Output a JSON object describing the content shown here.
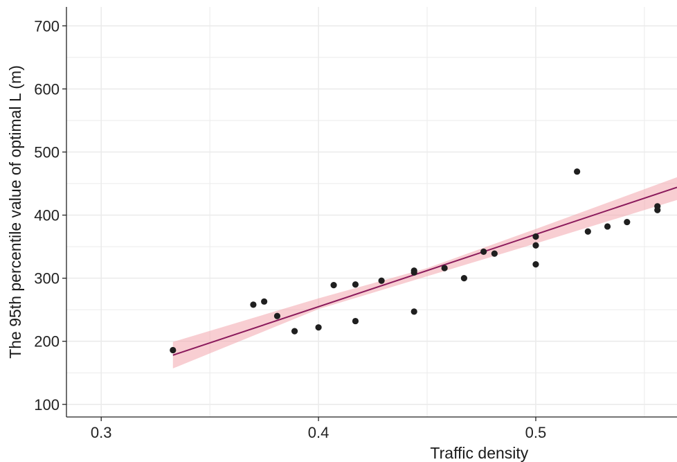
{
  "chart_data": {
    "type": "scatter",
    "title": "",
    "xlabel": "Traffic density",
    "ylabel": "The 95th percentile value of optimal L (m)",
    "xlim": [
      0.284,
      0.565
    ],
    "ylim": [
      80,
      730
    ],
    "x_ticks": [
      0.3,
      0.4,
      0.5
    ],
    "x_tick_labels": [
      "0.3",
      "0.4",
      "0.5"
    ],
    "y_ticks": [
      100,
      200,
      300,
      400,
      500,
      600,
      700
    ],
    "y_tick_labels": [
      "100",
      "200",
      "300",
      "400",
      "500",
      "600",
      "700"
    ],
    "grid": true,
    "legend": "none",
    "points": [
      {
        "x": 0.333,
        "y": 186
      },
      {
        "x": 0.37,
        "y": 258
      },
      {
        "x": 0.375,
        "y": 263
      },
      {
        "x": 0.381,
        "y": 240
      },
      {
        "x": 0.389,
        "y": 216
      },
      {
        "x": 0.4,
        "y": 222
      },
      {
        "x": 0.407,
        "y": 289
      },
      {
        "x": 0.417,
        "y": 290
      },
      {
        "x": 0.417,
        "y": 232
      },
      {
        "x": 0.429,
        "y": 296
      },
      {
        "x": 0.444,
        "y": 312
      },
      {
        "x": 0.444,
        "y": 309
      },
      {
        "x": 0.444,
        "y": 247
      },
      {
        "x": 0.458,
        "y": 316
      },
      {
        "x": 0.467,
        "y": 300
      },
      {
        "x": 0.476,
        "y": 342
      },
      {
        "x": 0.481,
        "y": 339
      },
      {
        "x": 0.5,
        "y": 366
      },
      {
        "x": 0.5,
        "y": 352
      },
      {
        "x": 0.5,
        "y": 322
      },
      {
        "x": 0.519,
        "y": 469
      },
      {
        "x": 0.524,
        "y": 374
      },
      {
        "x": 0.533,
        "y": 382
      },
      {
        "x": 0.542,
        "y": 389
      },
      {
        "x": 0.556,
        "y": 414
      },
      {
        "x": 0.556,
        "y": 408
      }
    ],
    "fit_line": {
      "x": [
        0.333,
        0.565
      ],
      "y": [
        178,
        444
      ]
    },
    "confidence_band": {
      "x": [
        0.333,
        0.4,
        0.45,
        0.5,
        0.565
      ],
      "lower": [
        157,
        251,
        303,
        355,
        424
      ],
      "upper": [
        199,
        268,
        316,
        378,
        460
      ]
    },
    "colors": {
      "points": "#1f1f1f",
      "fit_line": "#8b1a5c",
      "band": "#f3a6ad",
      "grid": "#ebebeb",
      "axis": "#222222"
    }
  }
}
